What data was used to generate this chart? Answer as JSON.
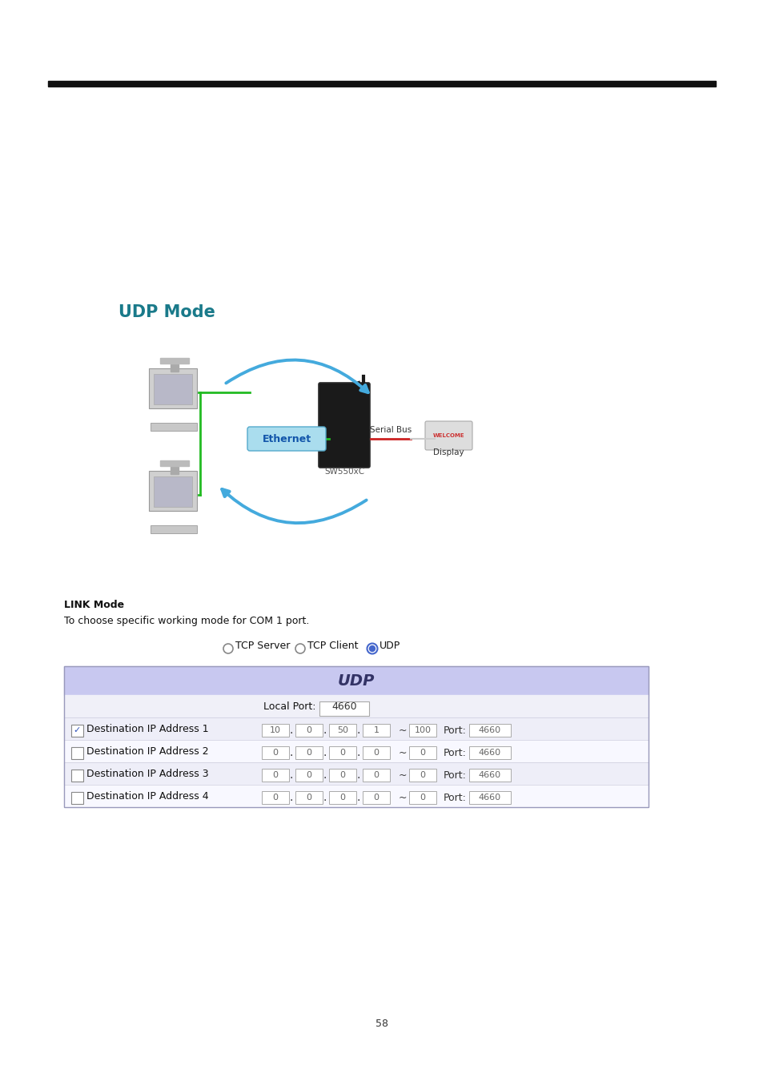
{
  "bg_color": "#ffffff",
  "top_bar_color": "#111111",
  "udp_mode_title": "UDP Mode",
  "udp_mode_title_color": "#1a7a8a",
  "link_mode_label": "LINK Mode",
  "link_mode_desc": "To choose specific working mode for COM 1 port.",
  "table_header": "UDP",
  "table_header_bg": "#c8c8f0",
  "table_row_bg_light": "#eeeef8",
  "table_row_bg_white": "#f8f8ff",
  "local_port_label": "Local Port:",
  "local_port_value": "4660",
  "dest_rows": [
    {
      "checked": true,
      "label": "Destination IP Address 1",
      "ip": [
        "10",
        "0",
        "50",
        "1"
      ],
      "range_val": "100",
      "port": "4660"
    },
    {
      "checked": false,
      "label": "Destination IP Address 2",
      "ip": [
        "0",
        "0",
        "0",
        "0"
      ],
      "range_val": "0",
      "port": "4660"
    },
    {
      "checked": false,
      "label": "Destination IP Address 3",
      "ip": [
        "0",
        "0",
        "0",
        "0"
      ],
      "range_val": "0",
      "port": "4660"
    },
    {
      "checked": false,
      "label": "Destination IP Address 4",
      "ip": [
        "0",
        "0",
        "0",
        "0"
      ],
      "range_val": "0",
      "port": "4660"
    }
  ],
  "page_number": "58",
  "ethernet_label": "Ethernet",
  "serial_bus_label": "Serial Bus",
  "display_label": "Display",
  "sw_label": "SW550xC",
  "arrow_color": "#44aadd",
  "green_color": "#22bb22",
  "red_line_color": "#cc2222"
}
